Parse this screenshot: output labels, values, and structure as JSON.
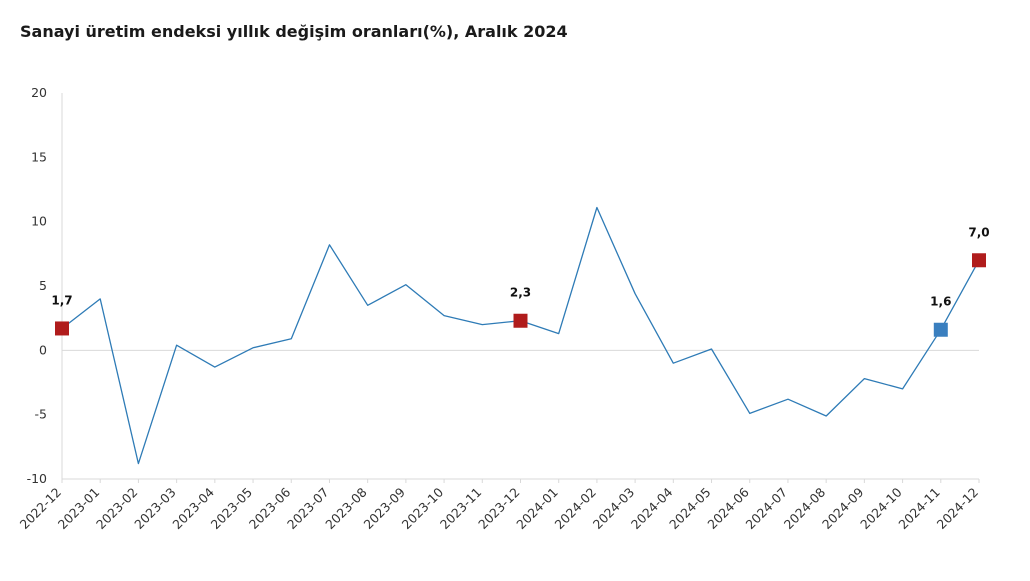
{
  "chart_data": {
    "type": "line",
    "title": "Sanayi üretim endeksi yıllık değişim oranları(%), Aralık 2024",
    "xlabel": "",
    "ylabel": "",
    "ylim": [
      -10,
      20
    ],
    "yticks": [
      -10,
      -5,
      0,
      5,
      10,
      15,
      20
    ],
    "categories": [
      "2022-12",
      "2023-01",
      "2023-02",
      "2023-03",
      "2023-04",
      "2023-05",
      "2023-06",
      "2023-07",
      "2023-08",
      "2023-09",
      "2023-10",
      "2023-11",
      "2023-12",
      "2024-01",
      "2024-02",
      "2024-03",
      "2024-04",
      "2024-05",
      "2024-06",
      "2024-07",
      "2024-08",
      "2024-09",
      "2024-10",
      "2024-11",
      "2024-12"
    ],
    "series": [
      {
        "values": [
          1.7,
          4.0,
          -8.8,
          0.4,
          -1.3,
          0.2,
          0.9,
          8.2,
          3.5,
          5.1,
          2.7,
          2.0,
          2.3,
          1.3,
          11.1,
          4.4,
          -1.0,
          0.1,
          -4.9,
          -3.8,
          -5.1,
          -2.2,
          -3.0,
          1.6,
          7.0
        ],
        "color": "#2e7bb6"
      }
    ],
    "highlights": [
      {
        "index": 0,
        "label": "1,7",
        "color": "#b01c1c"
      },
      {
        "index": 12,
        "label": "2,3",
        "color": "#b01c1c"
      },
      {
        "index": 23,
        "label": "1,6",
        "color": "#3a7fbf"
      },
      {
        "index": 24,
        "label": "7,0",
        "color": "#b01c1c"
      }
    ],
    "grid": false,
    "legend": "none"
  }
}
